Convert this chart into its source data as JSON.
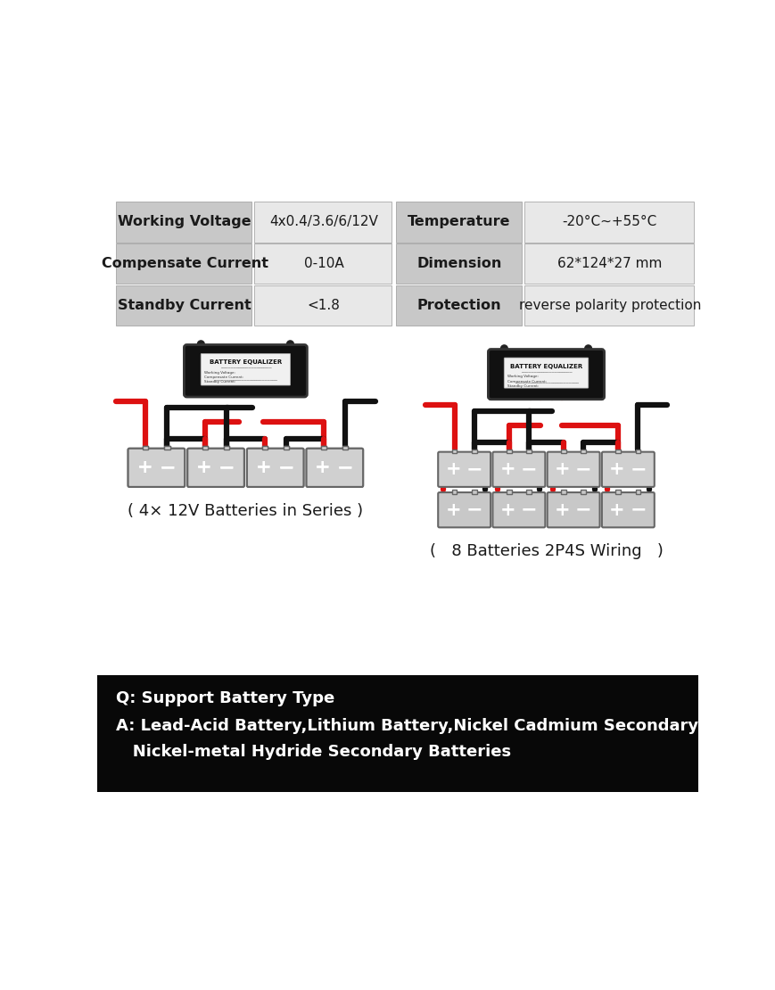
{
  "bg_color": "#ffffff",
  "table_rows": [
    [
      "Working Voltage",
      "4x0.4/3.6/6/12V",
      "Temperature",
      "-20°C~+55°C"
    ],
    [
      "Compensate Current",
      "0-10A",
      "Dimension",
      "62*124*27 mm"
    ],
    [
      "Standby Current",
      "<1.8",
      "Protection",
      "reverse polarity protection"
    ]
  ],
  "diagram_label_left": "( 4× 12V Batteries in Series )",
  "diagram_label_right": "(   8 Batteries 2P4S Wiring   )",
  "black_box_color": "#111111",
  "battery_color": "#d0d0d0",
  "battery_border_color": "#666666",
  "wire_red": "#dd1111",
  "wire_black": "#111111",
  "bottom_bg": "#080808",
  "bottom_text_color": "#ffffff",
  "bottom_line1": "Q: Support Battery Type",
  "bottom_line2": "A: Lead-Acid Battery,Lithium Battery,Nickel Cadmium Secondary Batteries",
  "bottom_line3": "   Nickel-metal Hydride Secondary Batteries"
}
